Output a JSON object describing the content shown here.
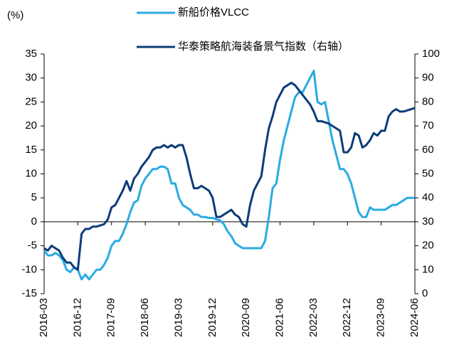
{
  "chart_data": {
    "type": "line",
    "y_label": "(%)",
    "x": [
      "2016-03",
      "2016-04",
      "2016-05",
      "2016-06",
      "2016-07",
      "2016-08",
      "2016-09",
      "2016-10",
      "2016-11",
      "2016-12",
      "2017-01",
      "2017-02",
      "2017-03",
      "2017-04",
      "2017-05",
      "2017-06",
      "2017-07",
      "2017-08",
      "2017-09",
      "2017-10",
      "2017-11",
      "2017-12",
      "2018-01",
      "2018-02",
      "2018-03",
      "2018-04",
      "2018-05",
      "2018-06",
      "2018-07",
      "2018-08",
      "2018-09",
      "2018-10",
      "2018-11",
      "2018-12",
      "2019-01",
      "2019-02",
      "2019-03",
      "2019-04",
      "2019-05",
      "2019-06",
      "2019-07",
      "2019-08",
      "2019-09",
      "2019-10",
      "2019-11",
      "2019-12",
      "2020-01",
      "2020-02",
      "2020-03",
      "2020-04",
      "2020-05",
      "2020-06",
      "2020-07",
      "2020-08",
      "2020-09",
      "2020-10",
      "2020-11",
      "2020-12",
      "2021-01",
      "2021-02",
      "2021-03",
      "2021-04",
      "2021-05",
      "2021-06",
      "2021-07",
      "2021-08",
      "2021-09",
      "2021-10",
      "2021-11",
      "2021-12",
      "2022-01",
      "2022-02",
      "2022-03",
      "2022-04",
      "2022-05",
      "2022-06",
      "2022-07",
      "2022-08",
      "2022-09",
      "2022-10",
      "2022-11",
      "2022-12",
      "2023-01",
      "2023-02",
      "2023-03",
      "2023-04",
      "2023-05",
      "2023-06",
      "2023-07",
      "2023-08",
      "2023-09",
      "2023-10",
      "2023-11",
      "2023-12",
      "2024-01",
      "2024-02",
      "2024-03",
      "2024-04",
      "2024-05",
      "2024-06"
    ],
    "series": [
      {
        "name": "新船价格VLCC",
        "color": "#29abe2",
        "axis": "y",
        "values": [
          -6,
          -7,
          -7,
          -6.5,
          -7,
          -8,
          -10,
          -10.5,
          -9.5,
          -10,
          -12,
          -11,
          -12,
          -11,
          -10,
          -10,
          -9,
          -7.5,
          -5,
          -4,
          -4,
          -2.5,
          -0.5,
          2,
          4,
          4.5,
          7.5,
          9,
          10,
          11,
          11,
          11.5,
          11.5,
          11,
          8,
          8,
          5,
          3.5,
          3,
          2.5,
          1.5,
          1.5,
          1,
          1,
          0.8,
          0.8,
          0.5,
          0.3,
          -0.5,
          -2,
          -3,
          -4.5,
          -5,
          -5.5,
          -5.5,
          -5.5,
          -5.5,
          -5.5,
          -5.5,
          -4,
          1,
          7,
          8,
          13,
          17,
          20,
          23,
          26,
          27,
          27,
          28.5,
          30,
          31.5,
          25,
          24.5,
          25,
          21,
          17,
          14,
          11,
          11,
          10,
          8,
          5,
          2,
          1,
          1,
          3,
          2.5,
          2.5,
          2.5,
          2.5,
          3,
          3.5,
          3.5,
          4,
          4.5,
          5,
          5,
          5
        ]
      },
      {
        "name": "华泰策略航海装备景气指数（右轴）",
        "color": "#0c3c7a",
        "axis": "y2",
        "values": [
          19,
          18,
          20,
          19,
          18,
          15,
          13,
          13,
          11,
          10,
          25,
          27,
          27,
          28,
          28,
          28.5,
          29,
          31,
          36,
          37,
          40,
          43,
          47,
          43,
          48,
          50,
          53,
          55,
          57,
          60,
          61,
          61,
          62,
          61,
          62,
          61,
          62,
          62,
          57,
          50,
          44,
          44,
          45,
          44,
          43,
          40,
          32,
          32,
          33,
          34,
          35,
          33,
          32,
          29,
          28,
          37,
          43,
          46,
          49,
          60,
          69,
          74,
          80,
          83,
          86,
          87,
          88,
          87,
          85,
          83,
          81,
          79,
          76,
          72,
          72,
          71.5,
          71,
          70,
          69,
          68,
          59,
          59,
          61,
          67,
          66,
          61,
          62,
          64,
          67,
          66,
          68,
          68,
          74,
          76,
          77,
          76,
          76,
          76.5,
          77,
          77.5
        ]
      }
    ],
    "ylim": [
      -15,
      35
    ],
    "yticks": [
      -15,
      -10,
      -5,
      0,
      5,
      10,
      15,
      20,
      25,
      30,
      35
    ],
    "y2lim": [
      0,
      100
    ],
    "y2ticks": [
      0,
      10,
      20,
      30,
      40,
      50,
      60,
      70,
      80,
      90,
      100
    ],
    "grid": false,
    "legend": "top"
  }
}
